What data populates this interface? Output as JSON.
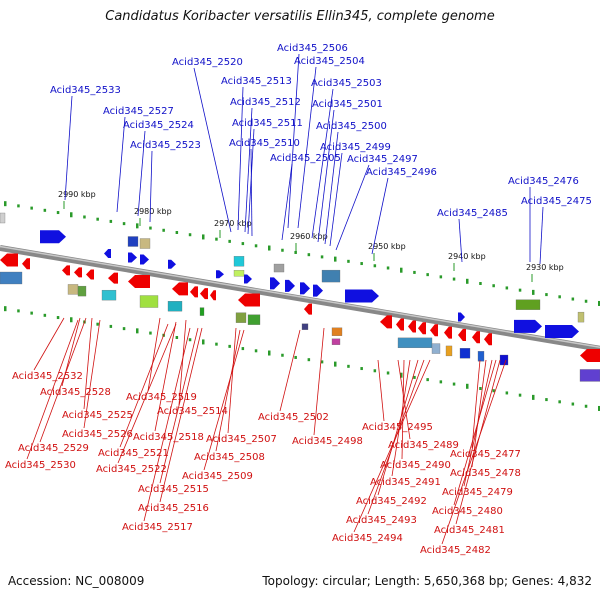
{
  "title": "Candidatus Koribacter versatilis Ellin345, complete genome",
  "footer": {
    "accession": "Accession: NC_008009",
    "topology": "Topology: circular; Length: 5,650,368 bp; Genes: 4,832"
  },
  "ticks": [
    "2990 kbp",
    "2980 kbp",
    "2970 kbp",
    "2960 kbp",
    "2950 kbp",
    "2940 kbp",
    "2930 kbp"
  ],
  "top_labels": [
    "Acid345_2506",
    "Acid345_2520",
    "Acid345_2504",
    "Acid345_2513",
    "Acid345_2503",
    "Acid345_2533",
    "Acid345_2512",
    "Acid345_2501",
    "Acid345_2527",
    "Acid345_2511",
    "Acid345_2524",
    "Acid345_2500",
    "Acid345_2510",
    "Acid345_2523",
    "Acid345_2499",
    "Acid345_2505",
    "Acid345_2497",
    "Acid345_2496",
    "Acid345_2476",
    "Acid345_2475",
    "Acid345_2485"
  ],
  "bottom_labels": [
    "Acid345_2532",
    "Acid345_2528",
    "Acid345_2519",
    "Acid345_2514",
    "Acid345_2525",
    "Acid345_2502",
    "Acid345_2526",
    "Acid345_2495",
    "Acid345_2518",
    "Acid345_2507",
    "Acid345_2498",
    "Acid345_2529",
    "Acid345_2489",
    "Acid345_2521",
    "Acid345_2477",
    "Acid345_2530",
    "Acid345_2508",
    "Acid345_2490",
    "Acid345_2522",
    "Acid345_2478",
    "Acid345_2509",
    "Acid345_2491",
    "Acid345_2515",
    "Acid345_2479",
    "Acid345_2492",
    "Acid345_2516",
    "Acid345_2480",
    "Acid345_2493",
    "Acid345_2517",
    "Acid345_2481",
    "Acid345_2494",
    "Acid345_2482"
  ]
}
